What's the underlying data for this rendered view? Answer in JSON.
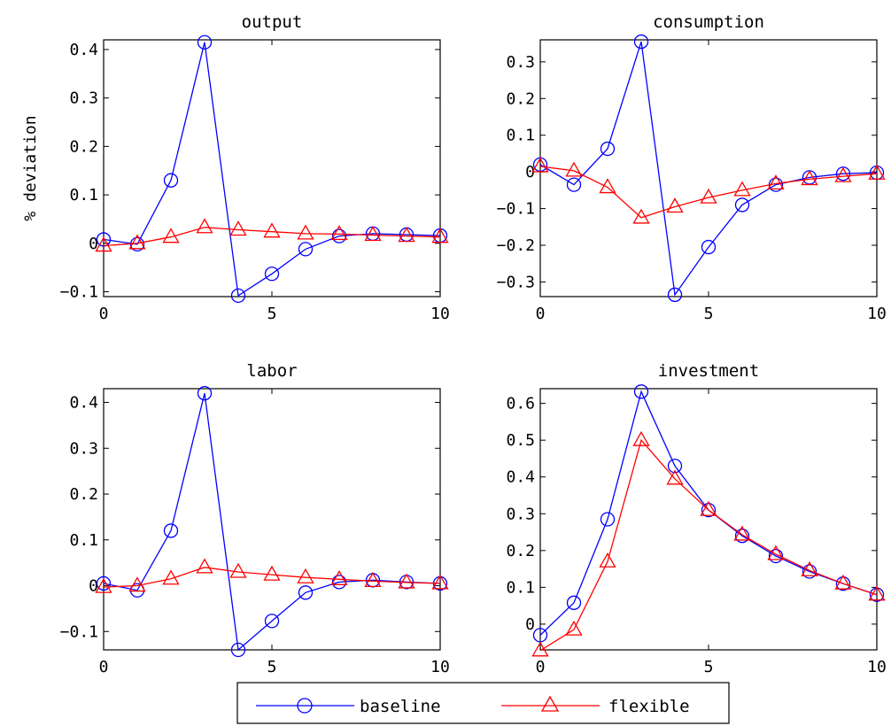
{
  "figure": {
    "ylabel": "% deviation",
    "legend": [
      {
        "label": "baseline",
        "color": "#0000ff",
        "marker": "circle"
      },
      {
        "label": "flexible",
        "color": "#ff0000",
        "marker": "triangle"
      }
    ]
  },
  "chart_data": [
    {
      "type": "line",
      "title": "output",
      "ylabel": "% deviation",
      "xlim": [
        0,
        10
      ],
      "ylim": [
        -0.11,
        0.42
      ],
      "xticks": [
        0,
        5,
        10
      ],
      "yticks": [
        -0.1,
        0,
        0.1,
        0.2,
        0.3,
        0.4
      ],
      "ytick_labels": [
        "−0.1",
        "0",
        "0.1",
        "0.2",
        "0.3",
        "0.4"
      ],
      "x": [
        0,
        1,
        2,
        3,
        4,
        5,
        6,
        7,
        8,
        9,
        10
      ],
      "series": [
        {
          "name": "baseline",
          "values": [
            0.008,
            -0.002,
            0.13,
            0.415,
            -0.108,
            -0.063,
            -0.012,
            0.015,
            0.02,
            0.018,
            0.016
          ]
        },
        {
          "name": "flexible",
          "values": [
            -0.005,
            0.0,
            0.013,
            0.033,
            0.028,
            0.024,
            0.02,
            0.019,
            0.017,
            0.015,
            0.013
          ]
        }
      ]
    },
    {
      "type": "line",
      "title": "consumption",
      "ylabel": "",
      "xlim": [
        0,
        10
      ],
      "ylim": [
        -0.34,
        0.36
      ],
      "xticks": [
        0,
        5,
        10
      ],
      "yticks": [
        -0.3,
        -0.2,
        -0.1,
        0,
        0.1,
        0.2,
        0.3
      ],
      "ytick_labels": [
        "−0.3",
        "−0.2",
        "−0.1",
        "0",
        "0.1",
        "0.2",
        "0.3"
      ],
      "x": [
        0,
        1,
        2,
        3,
        4,
        5,
        6,
        7,
        8,
        9,
        10
      ],
      "series": [
        {
          "name": "baseline",
          "values": [
            0.02,
            -0.035,
            0.063,
            0.355,
            -0.335,
            -0.205,
            -0.09,
            -0.035,
            -0.015,
            -0.005,
            -0.002
          ]
        },
        {
          "name": "flexible",
          "values": [
            0.015,
            0.003,
            -0.042,
            -0.125,
            -0.095,
            -0.07,
            -0.05,
            -0.032,
            -0.02,
            -0.012,
            -0.005
          ]
        }
      ]
    },
    {
      "type": "line",
      "title": "labor",
      "ylabel": "",
      "xlim": [
        0,
        10
      ],
      "ylim": [
        -0.14,
        0.43
      ],
      "xticks": [
        0,
        5,
        10
      ],
      "yticks": [
        -0.1,
        0,
        0.1,
        0.2,
        0.3,
        0.4
      ],
      "ytick_labels": [
        "−0.1",
        "0",
        "0.1",
        "0.2",
        "0.3",
        "0.4"
      ],
      "x": [
        0,
        1,
        2,
        3,
        4,
        5,
        6,
        7,
        8,
        9,
        10
      ],
      "series": [
        {
          "name": "baseline",
          "values": [
            0.005,
            -0.01,
            0.12,
            0.42,
            -0.14,
            -0.077,
            -0.015,
            0.008,
            0.012,
            0.008,
            0.005
          ]
        },
        {
          "name": "flexible",
          "values": [
            -0.003,
            0.0,
            0.015,
            0.04,
            0.03,
            0.024,
            0.018,
            0.014,
            0.01,
            0.007,
            0.005
          ]
        }
      ]
    },
    {
      "type": "line",
      "title": "investment",
      "ylabel": "",
      "xlim": [
        0,
        10
      ],
      "ylim": [
        -0.07,
        0.64
      ],
      "xticks": [
        0,
        5,
        10
      ],
      "yticks": [
        0,
        0.1,
        0.2,
        0.3,
        0.4,
        0.5,
        0.6
      ],
      "ytick_labels": [
        "0",
        "0.1",
        "0.2",
        "0.3",
        "0.4",
        "0.5",
        "0.6"
      ],
      "x": [
        0,
        1,
        2,
        3,
        4,
        5,
        6,
        7,
        8,
        9,
        10
      ],
      "series": [
        {
          "name": "baseline",
          "values": [
            -0.03,
            0.058,
            0.285,
            0.632,
            0.43,
            0.31,
            0.24,
            0.185,
            0.143,
            0.11,
            0.08
          ]
        },
        {
          "name": "flexible",
          "values": [
            -0.072,
            -0.015,
            0.17,
            0.5,
            0.395,
            0.31,
            0.243,
            0.19,
            0.146,
            0.11,
            0.08
          ]
        }
      ]
    }
  ]
}
